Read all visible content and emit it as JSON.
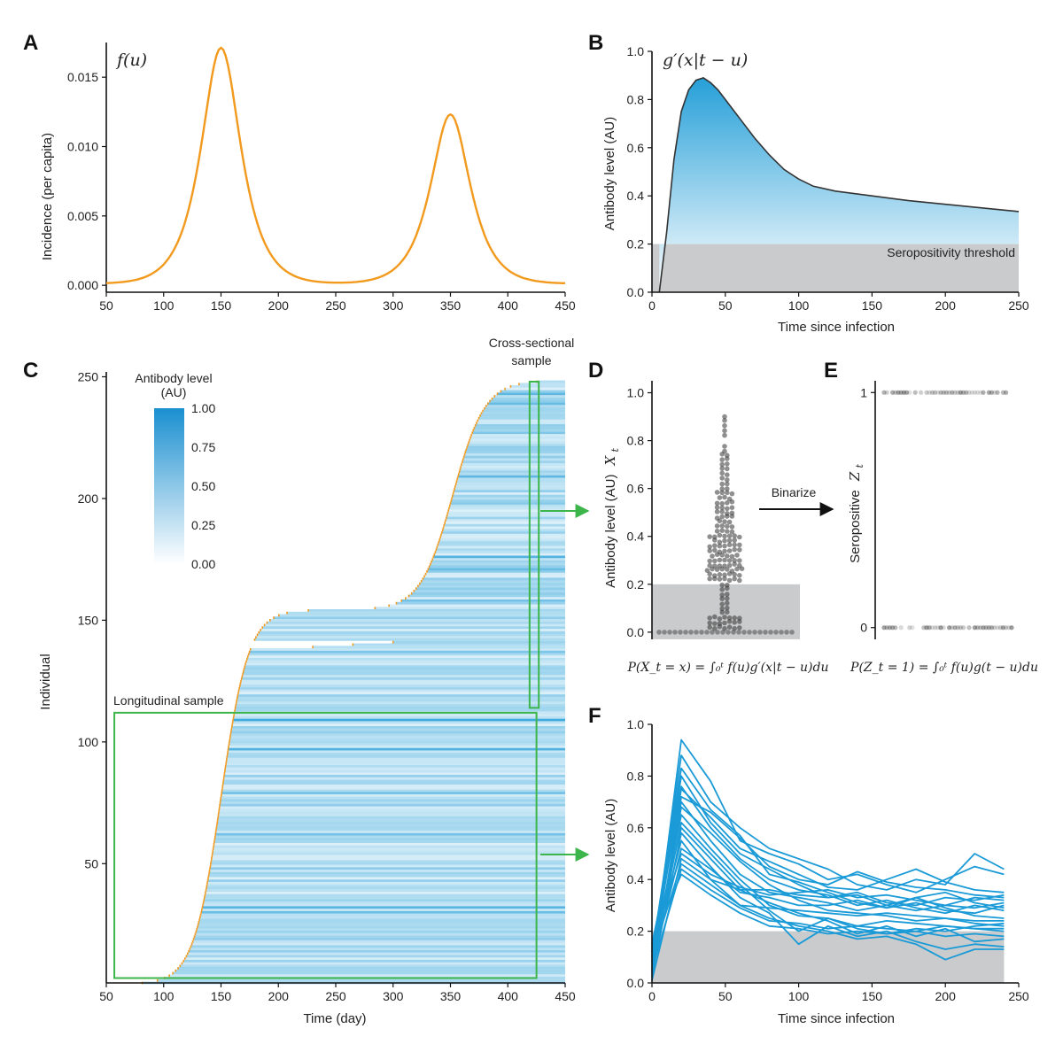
{
  "colors": {
    "incidence": "#f29a1e",
    "antibody": "#1a9ad6",
    "threshold_fill": "#c9cbcd",
    "sample_box": "#3cb54a",
    "text": "#222222",
    "dots": "#333333"
  },
  "panels": {
    "a": {
      "letter": "A",
      "func": "f(u)"
    },
    "b": {
      "letter": "B",
      "func": "g′(x|t − u)",
      "threshold_label": "Seropositivity threshold"
    },
    "c": {
      "letter": "C",
      "cross_label_1": "Cross-sectional",
      "cross_label_2": "sample",
      "long_label": "Longitudinal sample",
      "legend_title_1": "Antibody level",
      "legend_title_2": "(AU)",
      "legend_ticks": [
        "1.00",
        "0.75",
        "0.50",
        "0.25",
        "0.00"
      ]
    },
    "d": {
      "letter": "D",
      "ylabel_var": "X",
      "ylabel_sub": "t",
      "formula": "P(X_t = x) = ∫₀ᵗ f(u)g′(x|t − u)du"
    },
    "e": {
      "letter": "E",
      "ylabel_var": "Z",
      "ylabel_sub": "t",
      "formula": "P(Z_t = 1) = ∫₀ᵗ f(u)g(t − u)du",
      "arrow_label": "Binarize"
    },
    "f": {
      "letter": "F"
    }
  },
  "chart_data": [
    {
      "id": "A",
      "type": "line",
      "title": "f(u)",
      "xlabel": "",
      "ylabel": "Incidence (per capita)",
      "xlim": [
        50,
        450
      ],
      "ylim": [
        -0.0005,
        0.0175
      ],
      "xticks": [
        50,
        100,
        150,
        200,
        250,
        300,
        350,
        400,
        450
      ],
      "yticks": [
        0.0,
        0.005,
        0.01,
        0.015
      ],
      "ytick_labels": [
        "0.000",
        "0.005",
        "0.010",
        "0.015"
      ],
      "series": [
        {
          "name": "incidence",
          "peaks": [
            {
              "x": 150,
              "y": 0.017,
              "width": 22
            },
            {
              "x": 350,
              "y": 0.0122,
              "width": 22
            }
          ]
        }
      ]
    },
    {
      "id": "B",
      "type": "area",
      "title": "g′(x|t − u)",
      "xlabel": "Time since infection",
      "ylabel": "Antibody level (AU)",
      "xlim": [
        0,
        250
      ],
      "ylim": [
        0,
        1.0
      ],
      "xticks": [
        0,
        50,
        100,
        150,
        200,
        250
      ],
      "yticks": [
        0.0,
        0.2,
        0.4,
        0.6,
        0.8,
        1.0
      ],
      "ytick_labels": [
        "0.0",
        "0.2",
        "0.4",
        "0.6",
        "0.8",
        "1.0"
      ],
      "threshold": 0.2,
      "x": [
        5,
        10,
        15,
        20,
        25,
        30,
        35,
        40,
        45,
        50,
        60,
        70,
        80,
        90,
        100,
        110,
        125,
        150,
        175,
        200,
        225,
        250
      ],
      "values": [
        0.0,
        0.25,
        0.55,
        0.75,
        0.84,
        0.88,
        0.89,
        0.87,
        0.84,
        0.8,
        0.72,
        0.64,
        0.57,
        0.51,
        0.47,
        0.44,
        0.42,
        0.4,
        0.38,
        0.365,
        0.35,
        0.335
      ]
    },
    {
      "id": "C",
      "type": "heatmap",
      "xlabel": "Time (day)",
      "ylabel": "Individual",
      "xlim": [
        50,
        450
      ],
      "ylim": [
        1,
        252
      ],
      "xticks": [
        50,
        100,
        150,
        200,
        250,
        300,
        350,
        400,
        450
      ],
      "yticks": [
        50,
        100,
        150,
        200,
        250
      ],
      "n_individuals": 248,
      "colorscale": {
        "min": 0.0,
        "max": 1.0
      },
      "longitudinal_sample": {
        "x": [
          57,
          425
        ],
        "y": [
          3,
          112
        ]
      },
      "cross_sectional_sample": {
        "x": [
          419,
          427
        ],
        "y": [
          114,
          248
        ]
      }
    },
    {
      "id": "D",
      "type": "scatter",
      "ylabel": "Antibody level (AU)",
      "ylim": [
        -0.03,
        1.05
      ],
      "yticks": [
        0.0,
        0.2,
        0.4,
        0.6,
        0.8,
        1.0
      ],
      "ytick_labels": [
        "0.0",
        "0.2",
        "0.4",
        "0.6",
        "0.8",
        "1.0"
      ],
      "threshold": 0.2,
      "n_points": 250
    },
    {
      "id": "E",
      "type": "scatter",
      "ylabel": "Seropositive",
      "ylim": [
        -0.05,
        1.05
      ],
      "yticks": [
        0,
        1
      ],
      "ytick_labels": [
        "0",
        "1"
      ]
    },
    {
      "id": "F",
      "type": "line",
      "xlabel": "Time since infection",
      "ylabel": "Antibody level (AU)",
      "xlim": [
        0,
        250
      ],
      "ylim": [
        0,
        1.0
      ],
      "xticks": [
        0,
        50,
        100,
        150,
        200,
        250
      ],
      "yticks": [
        0.0,
        0.2,
        0.4,
        0.6,
        0.8,
        1.0
      ],
      "ytick_labels": [
        "0.0",
        "0.2",
        "0.4",
        "0.6",
        "0.8",
        "1.0"
      ],
      "threshold": 0.2,
      "x": [
        0,
        20,
        40,
        60,
        80,
        100,
        120,
        140,
        160,
        180,
        200,
        220,
        240
      ],
      "series": [
        {
          "name": "s1",
          "values": [
            0.05,
            0.94,
            0.78,
            0.55,
            0.5,
            0.46,
            0.4,
            0.42,
            0.38,
            0.35,
            0.4,
            0.45,
            0.42
          ]
        },
        {
          "name": "s2",
          "values": [
            0.1,
            0.88,
            0.7,
            0.6,
            0.52,
            0.48,
            0.44,
            0.38,
            0.36,
            0.4,
            0.38,
            0.5,
            0.44
          ]
        },
        {
          "name": "s3",
          "values": [
            0.08,
            0.8,
            0.62,
            0.5,
            0.44,
            0.38,
            0.33,
            0.34,
            0.3,
            0.28,
            0.3,
            0.33,
            0.32
          ]
        },
        {
          "name": "s4",
          "values": [
            0.12,
            0.76,
            0.6,
            0.48,
            0.4,
            0.36,
            0.34,
            0.3,
            0.32,
            0.29,
            0.27,
            0.3,
            0.28
          ]
        },
        {
          "name": "s5",
          "values": [
            0.02,
            0.72,
            0.66,
            0.56,
            0.45,
            0.4,
            0.38,
            0.43,
            0.39,
            0.37,
            0.36,
            0.34,
            0.33
          ]
        },
        {
          "name": "s6",
          "values": [
            0.15,
            0.7,
            0.55,
            0.42,
            0.35,
            0.33,
            0.31,
            0.28,
            0.3,
            0.33,
            0.29,
            0.26,
            0.25
          ]
        },
        {
          "name": "s7",
          "values": [
            0.04,
            0.68,
            0.58,
            0.47,
            0.38,
            0.32,
            0.28,
            0.27,
            0.26,
            0.24,
            0.25,
            0.23,
            0.22
          ]
        },
        {
          "name": "s8",
          "values": [
            0.09,
            0.65,
            0.52,
            0.4,
            0.3,
            0.26,
            0.25,
            0.22,
            0.24,
            0.23,
            0.22,
            0.21,
            0.2
          ]
        },
        {
          "name": "s9",
          "values": [
            0.06,
            0.62,
            0.5,
            0.38,
            0.28,
            0.2,
            0.25,
            0.21,
            0.19,
            0.2,
            0.18,
            0.19,
            0.18
          ]
        },
        {
          "name": "s10",
          "values": [
            0.13,
            0.6,
            0.48,
            0.36,
            0.31,
            0.27,
            0.24,
            0.19,
            0.22,
            0.18,
            0.21,
            0.16,
            0.17
          ]
        },
        {
          "name": "s11",
          "values": [
            0.03,
            0.58,
            0.45,
            0.33,
            0.27,
            0.15,
            0.22,
            0.18,
            0.2,
            0.16,
            0.13,
            0.15,
            0.14
          ]
        },
        {
          "name": "s12",
          "values": [
            0.11,
            0.55,
            0.4,
            0.3,
            0.25,
            0.22,
            0.2,
            0.17,
            0.18,
            0.15,
            0.09,
            0.13,
            0.13
          ]
        },
        {
          "name": "s13",
          "values": [
            0.07,
            0.52,
            0.44,
            0.35,
            0.33,
            0.3,
            0.3,
            0.32,
            0.29,
            0.31,
            0.28,
            0.27,
            0.3
          ]
        },
        {
          "name": "s14",
          "values": [
            0.14,
            0.5,
            0.42,
            0.37,
            0.34,
            0.35,
            0.36,
            0.33,
            0.34,
            0.32,
            0.3,
            0.29,
            0.31
          ]
        },
        {
          "name": "s15",
          "values": [
            0.01,
            0.48,
            0.4,
            0.36,
            0.36,
            0.34,
            0.33,
            0.35,
            0.31,
            0.3,
            0.33,
            0.32,
            0.34
          ]
        },
        {
          "name": "s16",
          "values": [
            0.1,
            0.46,
            0.38,
            0.3,
            0.29,
            0.28,
            0.27,
            0.26,
            0.27,
            0.26,
            0.25,
            0.24,
            0.24
          ]
        },
        {
          "name": "s17",
          "values": [
            0.05,
            0.44,
            0.36,
            0.29,
            0.24,
            0.23,
            0.21,
            0.22,
            0.21,
            0.2,
            0.22,
            0.21,
            0.21
          ]
        },
        {
          "name": "s18",
          "values": [
            0.16,
            0.42,
            0.34,
            0.27,
            0.22,
            0.21,
            0.19,
            0.2,
            0.19,
            0.21,
            0.2,
            0.22,
            0.23
          ]
        },
        {
          "name": "s19",
          "values": [
            0.08,
            0.75,
            0.64,
            0.52,
            0.47,
            0.42,
            0.37,
            0.36,
            0.4,
            0.44,
            0.39,
            0.36,
            0.35
          ]
        },
        {
          "name": "s20",
          "values": [
            0.12,
            0.83,
            0.67,
            0.57,
            0.42,
            0.39,
            0.35,
            0.31,
            0.29,
            0.33,
            0.35,
            0.31,
            0.29
          ]
        }
      ]
    }
  ]
}
